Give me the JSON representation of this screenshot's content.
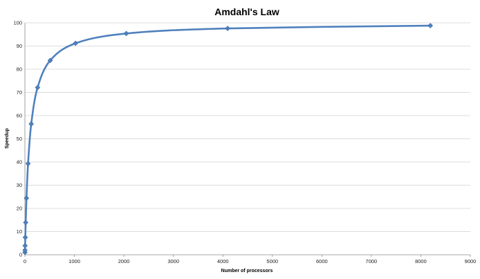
{
  "chart_data": {
    "type": "scatter",
    "title": "Amdahl's Law",
    "xlabel": "Number of processors",
    "ylabel": "Speedup",
    "xlim": [
      0,
      9000
    ],
    "ylim": [
      0,
      100
    ],
    "xticks": [
      0,
      1000,
      2000,
      3000,
      4000,
      5000,
      6000,
      7000,
      8000,
      9000
    ],
    "yticks": [
      0,
      10,
      20,
      30,
      40,
      50,
      60,
      70,
      80,
      90,
      100
    ],
    "grid": "horizontal",
    "line_style": "smooth line with diamond markers",
    "series": [
      {
        "color": "#4f81bd",
        "x": [
          1,
          2,
          4,
          8,
          16,
          32,
          64,
          128,
          256,
          512,
          1024,
          2048,
          4096,
          8192
        ],
        "y": [
          1,
          2,
          3.9,
          7.5,
          13.9,
          24.4,
          39.3,
          56.4,
          72.1,
          83.8,
          91.2,
          95.4,
          97.6,
          98.8
        ]
      }
    ]
  }
}
